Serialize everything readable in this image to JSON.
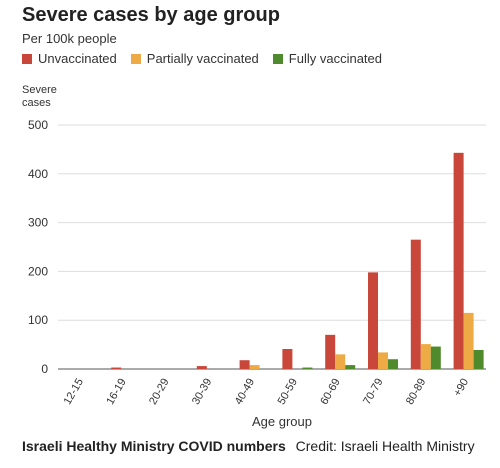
{
  "chart_data": {
    "type": "bar",
    "title": "Severe cases by age group",
    "subtitle": "Per 100k people",
    "ylabel": "Severe\ncases",
    "xlabel": "Age group",
    "ylim": [
      0,
      500
    ],
    "yticks": [
      0,
      100,
      200,
      300,
      400,
      500
    ],
    "grid": true,
    "legend_position": "top-left",
    "categories": [
      "12-15",
      "16-19",
      "20-29",
      "30-39",
      "40-49",
      "50-59",
      "60-69",
      "70-79",
      "80-89",
      "+90"
    ],
    "series": [
      {
        "name": "Unvaccinated",
        "color": "#c8473a",
        "values": [
          0,
          3,
          0,
          6,
          18,
          41,
          70,
          198,
          265,
          443
        ]
      },
      {
        "name": "Partially vaccinated",
        "color": "#eeaa44",
        "values": [
          0,
          0,
          0,
          0,
          8,
          0,
          30,
          34,
          51,
          115
        ]
      },
      {
        "name": "Fully vaccinated",
        "color": "#4f8a2d",
        "values": [
          0,
          0,
          0,
          0,
          0,
          3,
          8,
          20,
          46,
          39
        ]
      }
    ]
  },
  "footer": {
    "source": "Israeli Healthy Ministry COVID numbers",
    "credit": "Credit: Israeli Health Ministry"
  }
}
